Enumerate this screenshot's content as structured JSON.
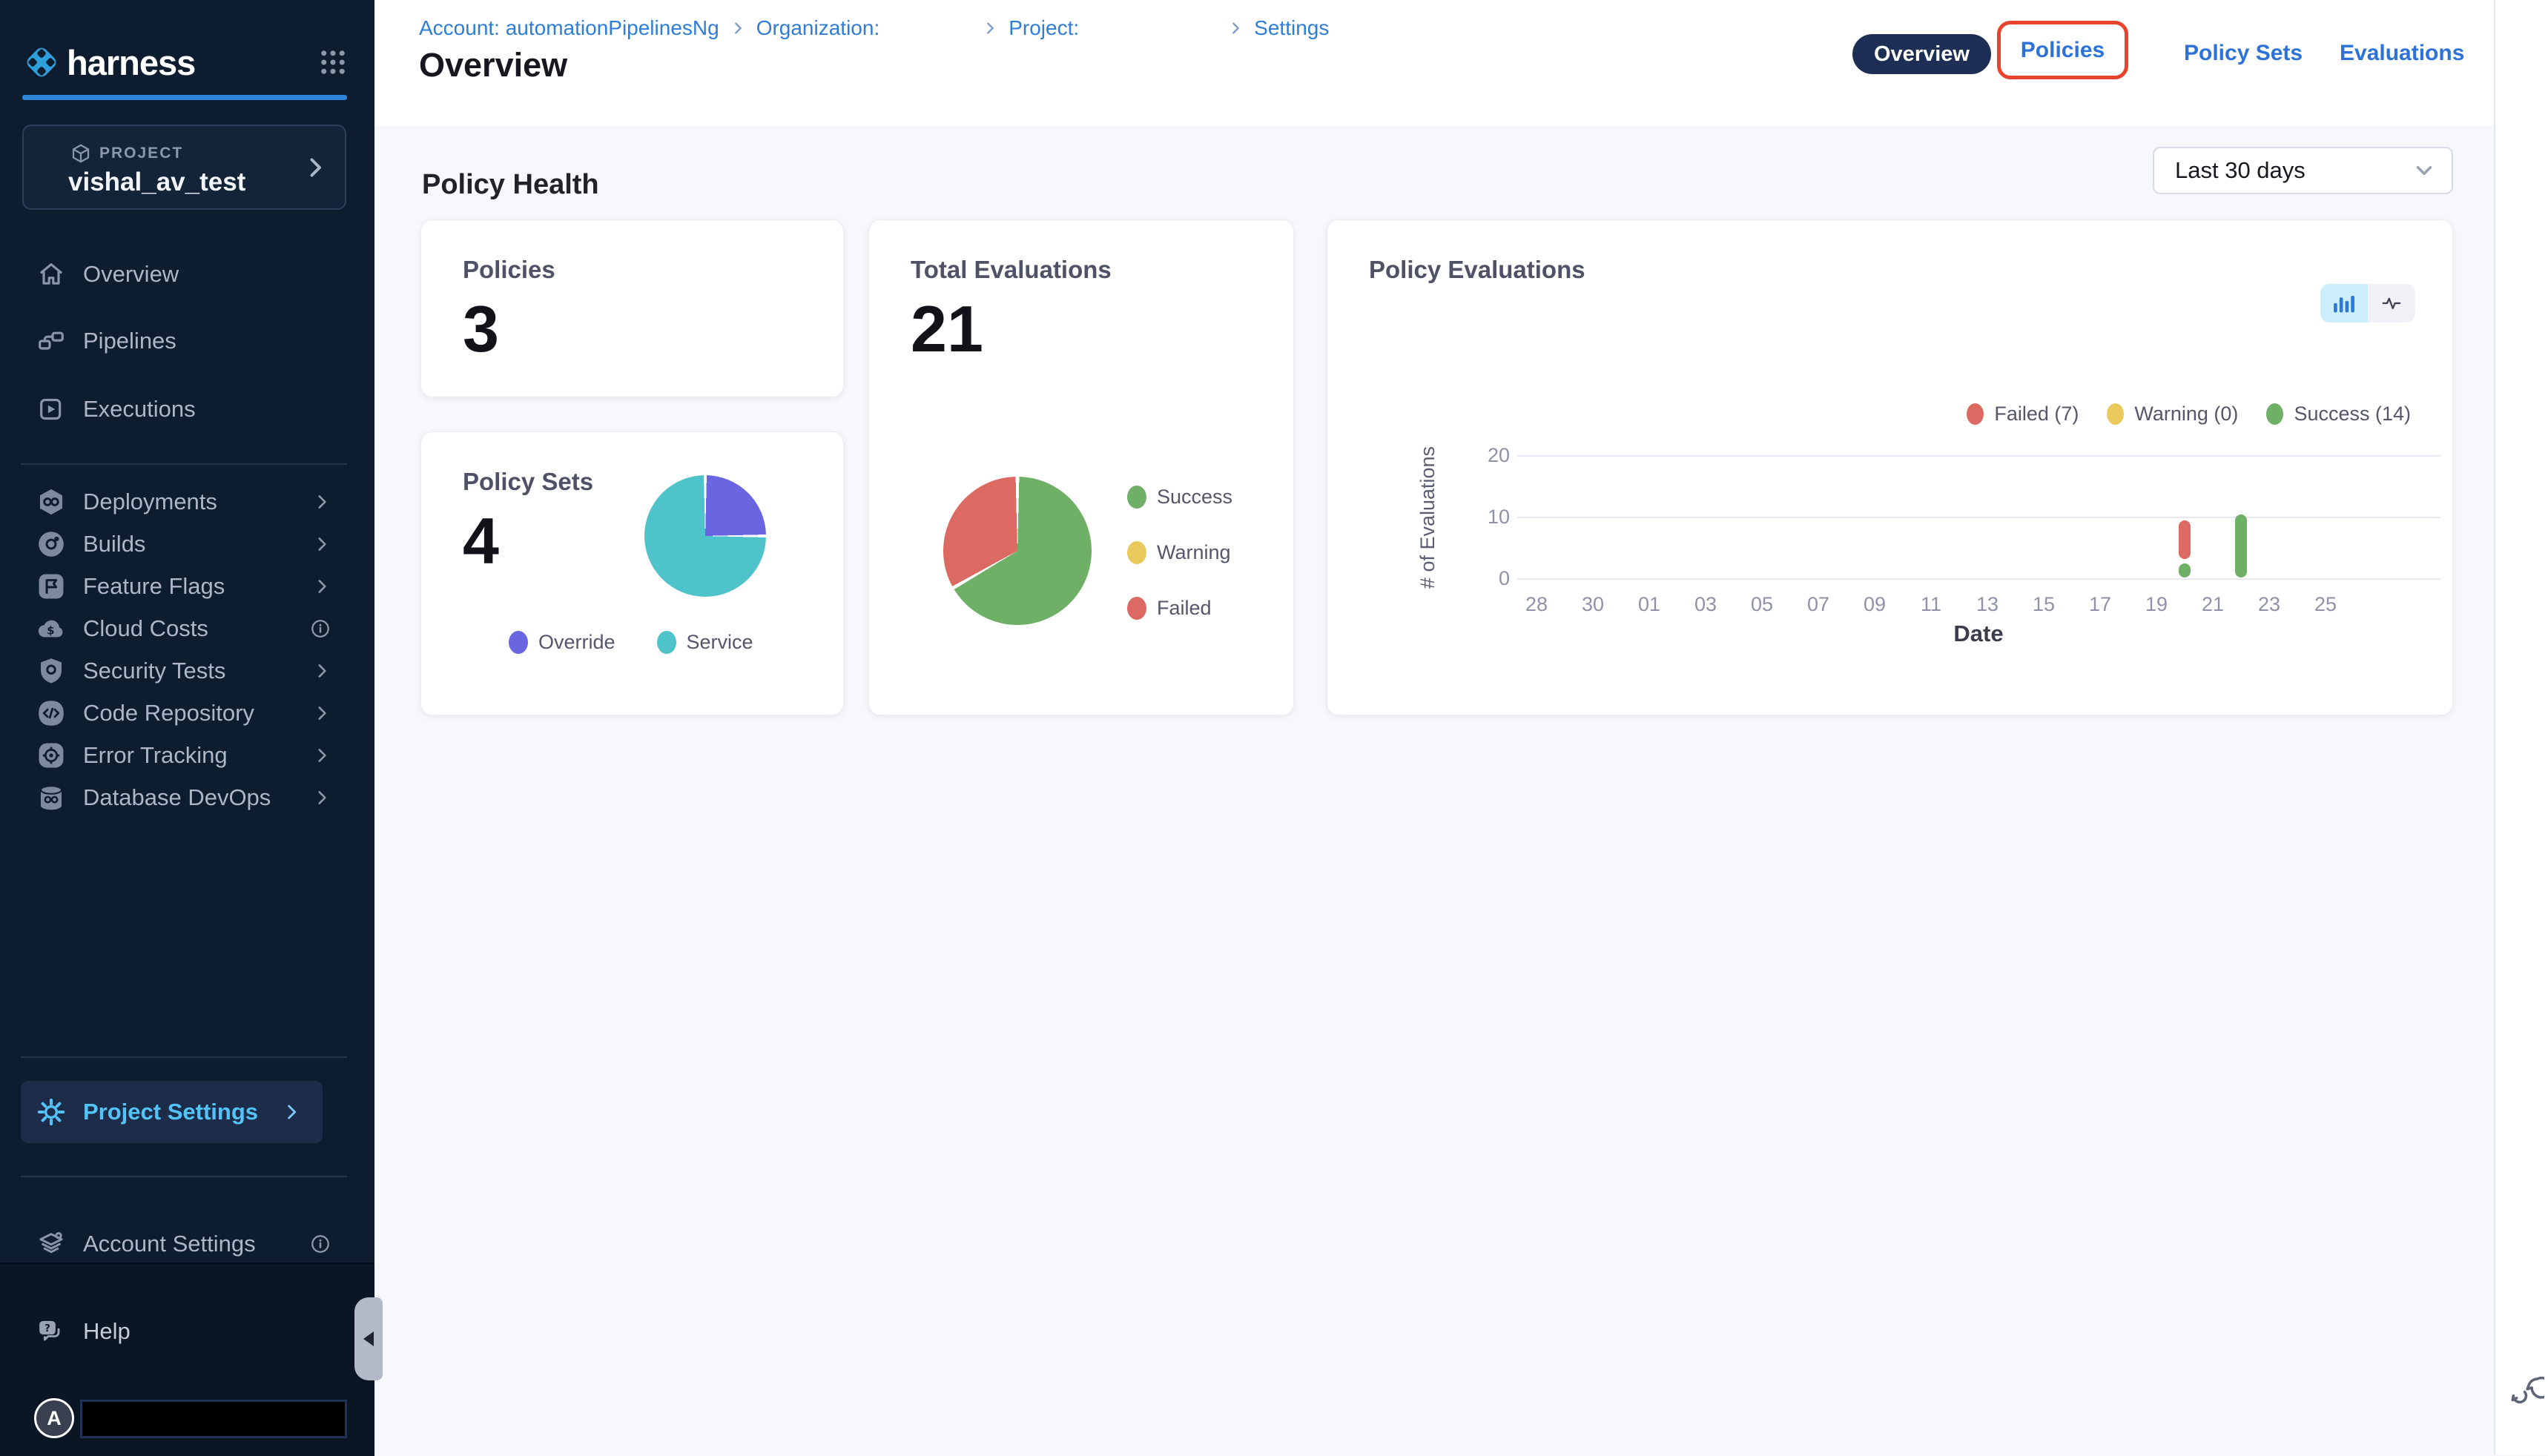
{
  "colors": {
    "accent_blue": "#0278d5",
    "link_blue": "#2c72d8",
    "breadcrumb_blue": "#2e7dd7",
    "sidebar_bg": "#0e1c30",
    "sidebar_footer_bg": "#0b1625",
    "sidebar_active_text": "#54c3f9",
    "tab_pill_navy": "#1e2f55",
    "annotation_red": "#e8432c",
    "success_green": "#6fb067",
    "failed_red": "#dd6a62",
    "warning_yellow": "#e9c95b",
    "override_purple": "#6a65e0",
    "service_teal": "#4fc3ca",
    "grid_line": "#e7eaf2",
    "axis_text": "#9091a9"
  },
  "icons": {
    "logo": "harness-diamond-icon",
    "apps": "grid-9-dots-icon",
    "project": "cube-icon",
    "overview": "home-icon",
    "pipelines": "pipeline-nodes-icon",
    "executions": "play-square-icon",
    "deployments": "infinity-hexagon-icon",
    "builds": "build-circle-icon",
    "feature_flags": "flag-icon",
    "cloud_costs": "cloud-dollar-icon",
    "security_tests": "shield-icon",
    "code_repository": "code-diamond-icon",
    "error_tracking": "target-icon",
    "database_devops": "database-icon",
    "project_settings": "gear-icon",
    "account_settings": "layers-icon",
    "help": "chat-question-icon",
    "collapse": "collapse-arrow-icon",
    "support": "chat-bubbles-icon",
    "chart_bar_toggle": "bar-chart-icon",
    "chart_line_toggle": "pulse-line-icon",
    "dropdown": "chevron-down-icon"
  },
  "sidebar": {
    "logo_text": "harness",
    "project_selector": {
      "label": "PROJECT",
      "name": "vishal_av_test"
    },
    "nav_primary": [
      {
        "label": "Overview"
      },
      {
        "label": "Pipelines"
      },
      {
        "label": "Executions"
      }
    ],
    "nav_modules": [
      {
        "label": "Deployments",
        "trailing": "chevron"
      },
      {
        "label": "Builds",
        "trailing": "chevron"
      },
      {
        "label": "Feature Flags",
        "trailing": "chevron"
      },
      {
        "label": "Cloud Costs",
        "trailing": "info"
      },
      {
        "label": "Security Tests",
        "trailing": "chevron"
      },
      {
        "label": "Code Repository",
        "trailing": "chevron"
      },
      {
        "label": "Error Tracking",
        "trailing": "chevron"
      },
      {
        "label": "Database DevOps",
        "trailing": "chevron"
      }
    ],
    "project_settings_label": "Project Settings",
    "account_settings_label": "Account Settings",
    "help_label": "Help",
    "avatar_letter": "A"
  },
  "header": {
    "breadcrumbs": [
      {
        "label": "Account: automationPipelinesNg"
      },
      {
        "label": "Organization:",
        "value": ""
      },
      {
        "label": "Project:",
        "value": ""
      },
      {
        "label": "Settings"
      }
    ],
    "page_title": "Overview",
    "tabs": [
      {
        "label": "Overview",
        "active": true
      },
      {
        "label": "Policies",
        "annotated": true
      },
      {
        "label": "Policy Sets"
      },
      {
        "label": "Evaluations"
      }
    ]
  },
  "main": {
    "section_title": "Policy Health",
    "date_filter_value": "Last 30 days",
    "cards": {
      "policies": {
        "title": "Policies",
        "value": "3"
      },
      "total_evaluations": {
        "title": "Total Evaluations",
        "value": "21"
      },
      "policy_sets": {
        "title": "Policy Sets",
        "value": "4"
      },
      "policy_evaluations": {
        "title": "Policy Evaluations",
        "legend": [
          "Failed (7)",
          "Warning (0)",
          "Success (14)"
        ],
        "xlabel": "Date",
        "ylabel": "# of Evaluations"
      }
    }
  },
  "chart_data": [
    {
      "type": "pie",
      "title": "Total Evaluations",
      "total": 21,
      "legend_position": "right",
      "slices": [
        {
          "label": "Success",
          "value": 14,
          "color": "#6fb067"
        },
        {
          "label": "Warning",
          "value": 0,
          "color": "#e9c95b"
        },
        {
          "label": "Failed",
          "value": 7,
          "color": "#dd6a62"
        }
      ]
    },
    {
      "type": "pie",
      "title": "Policy Sets",
      "total": 4,
      "legend_position": "bottom",
      "slices": [
        {
          "label": "Override",
          "value": 1,
          "color": "#6a65e0"
        },
        {
          "label": "Service",
          "value": 3,
          "color": "#4fc3ca"
        }
      ]
    },
    {
      "type": "bar",
      "stacked": true,
      "title": "Policy Evaluations",
      "xlabel": "Date",
      "ylabel": "# of Evaluations",
      "ylim": [
        0,
        20
      ],
      "yticks": [
        0,
        10,
        20
      ],
      "grid": true,
      "categories": [
        "28",
        "30",
        "01",
        "03",
        "05",
        "07",
        "09",
        "11",
        "13",
        "15",
        "17",
        "19",
        "21",
        "23",
        "25"
      ],
      "legend": [
        {
          "label": "Failed (7)",
          "color": "#dd6a62"
        },
        {
          "label": "Warning (0)",
          "color": "#e9c95b"
        },
        {
          "label": "Success (14)",
          "color": "#6fb067"
        }
      ],
      "bars": [
        {
          "date": "20",
          "x_index": 11.5,
          "segments": [
            {
              "label": "Success",
              "value": 3,
              "color": "#6fb067"
            },
            {
              "label": "Failed",
              "value": 7,
              "color": "#dd6a62"
            }
          ]
        },
        {
          "date": "22",
          "x_index": 12.5,
          "segments": [
            {
              "label": "Success",
              "value": 11,
              "color": "#6fb067"
            }
          ]
        }
      ]
    }
  ]
}
